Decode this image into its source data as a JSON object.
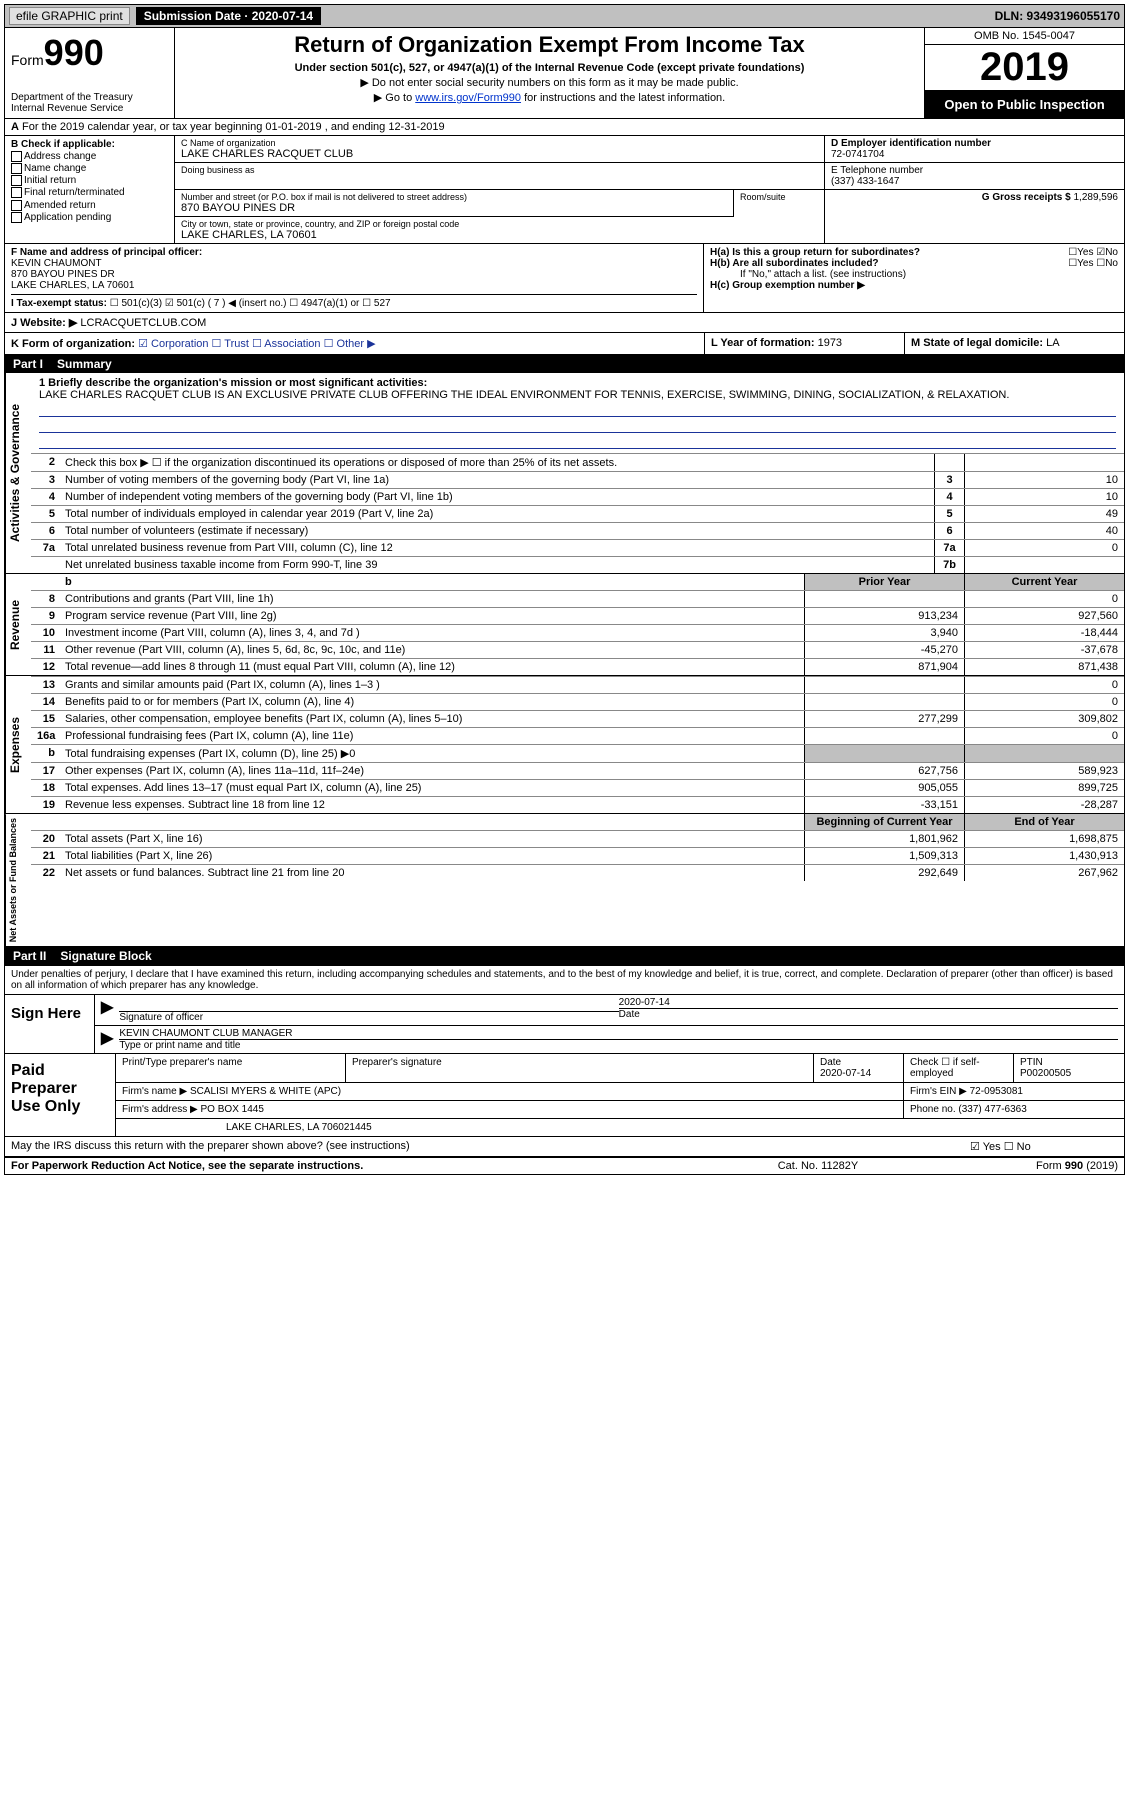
{
  "topbar": {
    "efile": "efile GRAPHIC print",
    "submission_label": "Submission Date · 2020-07-14",
    "dln": "DLN: 93493196055170"
  },
  "header": {
    "form_prefix": "Form",
    "form_no": "990",
    "title": "Return of Organization Exempt From Income Tax",
    "subtitle": "Under section 501(c), 527, or 4947(a)(1) of the Internal Revenue Code (except private foundations)",
    "note1": "▶ Do not enter social security numbers on this form as it may be made public.",
    "note2_pre": "▶ Go to ",
    "note2_link": "www.irs.gov/Form990",
    "note2_post": " for instructions and the latest information.",
    "dept": "Department of the Treasury\nInternal Revenue Service",
    "omb": "OMB No. 1545-0047",
    "year": "2019",
    "open_public": "Open to Public Inspection"
  },
  "rowA": "For the 2019 calendar year, or tax year beginning 01-01-2019    , and ending 12-31-2019",
  "colB": {
    "label": "B Check if applicable:",
    "items": [
      "Address change",
      "Name change",
      "Initial return",
      "Final return/terminated",
      "Amended return",
      "Application pending"
    ]
  },
  "colC": {
    "name_lab": "C Name of organization",
    "name": "LAKE CHARLES RACQUET CLUB",
    "dba_lab": "Doing business as",
    "addr_lab": "Number and street (or P.O. box if mail is not delivered to street address)",
    "room_lab": "Room/suite",
    "addr": "870 BAYOU PINES DR",
    "city_lab": "City or town, state or province, country, and ZIP or foreign postal code",
    "city": "LAKE CHARLES, LA   70601"
  },
  "colD": {
    "ein_lab": "D Employer identification number",
    "ein": "72-0741704",
    "phone_lab": "E Telephone number",
    "phone": "(337) 433-1647",
    "gross_lab": "G Gross receipts $",
    "gross": "1,289,596"
  },
  "rowF": {
    "lab": "F  Name and address of principal officer:",
    "name": "KEVIN CHAUMONT",
    "addr1": "870 BAYOU PINES DR",
    "addr2": "LAKE CHARLES, LA   70601"
  },
  "rowH": {
    "ha": "H(a)  Is this a group return for subordinates?",
    "ha_ans": "☐Yes  ☑No",
    "hb": "H(b)  Are all subordinates included?",
    "hb_ans": "☐Yes  ☐No",
    "hb_note": "If \"No,\" attach a list. (see instructions)",
    "hc": "H(c)  Group exemption number ▶"
  },
  "rowI": {
    "lab": "I  Tax-exempt status:",
    "opts": "☐ 501(c)(3)   ☑ 501(c) ( 7 ) ◀ (insert no.)   ☐ 4947(a)(1) or  ☐ 527"
  },
  "rowJ": {
    "lab": "J  Website: ▶",
    "val": "LCRACQUETCLUB.COM"
  },
  "rowK": {
    "lab": "K Form of organization:",
    "opts": "☑ Corporation  ☐ Trust  ☐ Association  ☐ Other ▶"
  },
  "rowL": {
    "lab": "L Year of formation:",
    "val": "1973"
  },
  "rowM": {
    "lab": "M State of legal domicile:",
    "val": "LA"
  },
  "part1": {
    "tag": "Part I",
    "title": "Summary"
  },
  "mission": {
    "lab": "1  Briefly describe the organization's mission or most significant activities:",
    "text": "LAKE CHARLES RACQUET CLUB IS AN EXCLUSIVE PRIVATE CLUB OFFERING THE IDEAL ENVIRONMENT FOR TENNIS, EXERCISE, SWIMMING, DINING, SOCIALIZATION, & RELAXATION."
  },
  "gov_lines": [
    {
      "n": "2",
      "d": "Check this box ▶ ☐  if the organization discontinued its operations or disposed of more than 25% of its net assets.",
      "box": "",
      "v": ""
    },
    {
      "n": "3",
      "d": "Number of voting members of the governing body (Part VI, line 1a)",
      "box": "3",
      "v": "10"
    },
    {
      "n": "4",
      "d": "Number of independent voting members of the governing body (Part VI, line 1b)",
      "box": "4",
      "v": "10"
    },
    {
      "n": "5",
      "d": "Total number of individuals employed in calendar year 2019 (Part V, line 2a)",
      "box": "5",
      "v": "49"
    },
    {
      "n": "6",
      "d": "Total number of volunteers (estimate if necessary)",
      "box": "6",
      "v": "40"
    },
    {
      "n": "7a",
      "d": "Total unrelated business revenue from Part VIII, column (C), line 12",
      "box": "7a",
      "v": "0"
    },
    {
      "n": "",
      "d": "Net unrelated business taxable income from Form 990-T, line 39",
      "box": "7b",
      "v": ""
    }
  ],
  "col_hdr": {
    "prior": "Prior Year",
    "current": "Current Year"
  },
  "rev_label": "Revenue",
  "rev_lines": [
    {
      "n": "8",
      "d": "Contributions and grants (Part VIII, line 1h)",
      "p": "",
      "c": "0"
    },
    {
      "n": "9",
      "d": "Program service revenue (Part VIII, line 2g)",
      "p": "913,234",
      "c": "927,560"
    },
    {
      "n": "10",
      "d": "Investment income (Part VIII, column (A), lines 3, 4, and 7d )",
      "p": "3,940",
      "c": "-18,444"
    },
    {
      "n": "11",
      "d": "Other revenue (Part VIII, column (A), lines 5, 6d, 8c, 9c, 10c, and 11e)",
      "p": "-45,270",
      "c": "-37,678"
    },
    {
      "n": "12",
      "d": "Total revenue—add lines 8 through 11 (must equal Part VIII, column (A), line 12)",
      "p": "871,904",
      "c": "871,438"
    }
  ],
  "exp_label": "Expenses",
  "exp_lines": [
    {
      "n": "13",
      "d": "Grants and similar amounts paid (Part IX, column (A), lines 1–3 )",
      "p": "",
      "c": "0"
    },
    {
      "n": "14",
      "d": "Benefits paid to or for members (Part IX, column (A), line 4)",
      "p": "",
      "c": "0"
    },
    {
      "n": "15",
      "d": "Salaries, other compensation, employee benefits (Part IX, column (A), lines 5–10)",
      "p": "277,299",
      "c": "309,802"
    },
    {
      "n": "16a",
      "d": "Professional fundraising fees (Part IX, column (A), line 11e)",
      "p": "",
      "c": "0"
    },
    {
      "n": "b",
      "d": "Total fundraising expenses (Part IX, column (D), line 25) ▶0",
      "p": "shade",
      "c": "shade"
    },
    {
      "n": "17",
      "d": "Other expenses (Part IX, column (A), lines 11a–11d, 11f–24e)",
      "p": "627,756",
      "c": "589,923"
    },
    {
      "n": "18",
      "d": "Total expenses. Add lines 13–17 (must equal Part IX, column (A), line 25)",
      "p": "905,055",
      "c": "899,725"
    },
    {
      "n": "19",
      "d": "Revenue less expenses. Subtract line 18 from line 12",
      "p": "-33,151",
      "c": "-28,287"
    }
  ],
  "na_label": "Net Assets or Fund Balances",
  "na_hdr": {
    "beg": "Beginning of Current Year",
    "end": "End of Year"
  },
  "na_lines": [
    {
      "n": "20",
      "d": "Total assets (Part X, line 16)",
      "p": "1,801,962",
      "c": "1,698,875"
    },
    {
      "n": "21",
      "d": "Total liabilities (Part X, line 26)",
      "p": "1,509,313",
      "c": "1,430,913"
    },
    {
      "n": "22",
      "d": "Net assets or fund balances. Subtract line 21 from line 20",
      "p": "292,649",
      "c": "267,962"
    }
  ],
  "part2": {
    "tag": "Part II",
    "title": "Signature Block"
  },
  "decl": "Under penalties of perjury, I declare that I have examined this return, including accompanying schedules and statements, and to the best of my knowledge and belief, it is true, correct, and complete. Declaration of preparer (other than officer) is based on all information of which preparer has any knowledge.",
  "sign": {
    "here": "Sign Here",
    "sig_lab": "Signature of officer",
    "date_lab": "Date",
    "date": "2020-07-14",
    "name": "KEVIN CHAUMONT CLUB MANAGER",
    "name_lab": "Type or print name and title"
  },
  "paid": {
    "lab": "Paid Preparer Use Only",
    "r1": {
      "c1": "Print/Type preparer's name",
      "c2": "Preparer's signature",
      "c3": "Date",
      "c3v": "2020-07-14",
      "c4": "Check ☐ if self-employed",
      "c5": "PTIN",
      "c5v": "P00200505"
    },
    "r2": {
      "c1": "Firm's name    ▶",
      "c1v": "SCALISI MYERS & WHITE (APC)",
      "c2": "Firm's EIN ▶",
      "c2v": "72-0953081"
    },
    "r3": {
      "c1": "Firm's address ▶",
      "c1v": "PO BOX 1445",
      "c2": "Phone no.",
      "c2v": "(337) 477-6363"
    },
    "r4": {
      "c1": "",
      "c1v": "LAKE CHARLES, LA   706021445"
    }
  },
  "discuss": {
    "q": "May the IRS discuss this return with the preparer shown above? (see instructions)",
    "a": "☑ Yes  ☐ No"
  },
  "footer": {
    "l": "For Paperwork Reduction Act Notice, see the separate instructions.",
    "m": "Cat. No. 11282Y",
    "r": "Form 990 (2019)"
  },
  "sidelabels": {
    "gov": "Activities & Governance"
  }
}
